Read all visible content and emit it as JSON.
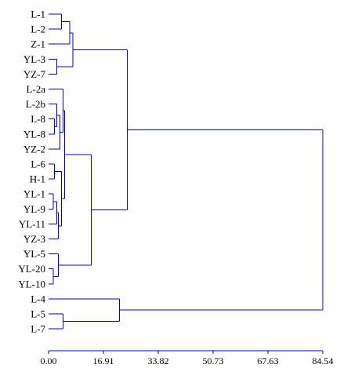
{
  "chart_data": {
    "type": "dendrogram",
    "orientation": "horizontal",
    "leaves": [
      "L-1",
      "L-2",
      "Z-1",
      "YL-3",
      "YZ-7",
      "L-2a",
      "L-2b",
      "L-8",
      "YL-8",
      "YZ-2",
      "L-6",
      "H-1",
      "YL-1",
      "YL-9",
      "YL-11",
      "YZ-3",
      "YL-5",
      "YL-20",
      "YL-10",
      "L-4",
      "L-5",
      "L-7"
    ],
    "x_ticks": [
      "0.00",
      "16.91",
      "33.82",
      "50.73",
      "67.63",
      "84.54"
    ],
    "xlim": [
      0,
      84.54
    ],
    "merges": [
      {
        "a": "L-1",
        "b": "L-2",
        "height": 4.0
      },
      {
        "a": "L-1+L-2",
        "b": "Z-1",
        "height": 6.5
      },
      {
        "a": "YL-3",
        "b": "YZ-7",
        "height": 2.5
      },
      {
        "a": "L-1+L-2+Z-1",
        "b": "YL-3+YZ-7",
        "height": 7.5
      },
      {
        "a": "L-8",
        "b": "YL-8",
        "height": 1.8
      },
      {
        "a": "L-2b",
        "b": "L-8+YL-8",
        "height": 2.5
      },
      {
        "a": "L-2b+L-8+YL-8",
        "b": "YZ-2",
        "height": 3.5
      },
      {
        "a": "L-2a",
        "b": "L-2b+L-8+YL-8+YZ-2",
        "height": 4.5
      },
      {
        "a": "L-6",
        "b": "H-1",
        "height": 1.8
      },
      {
        "a": "YL-1",
        "b": "YL-9",
        "height": 1.5
      },
      {
        "a": "YL-1+YL-9",
        "b": "YL-11",
        "height": 2.5
      },
      {
        "a": "YL-1+YL-9+YL-11",
        "b": "YZ-3",
        "height": 3.0
      },
      {
        "a": "L-6+H-1",
        "b": "YL-1+YL-9+YL-11+YZ-3",
        "height": 4.0
      },
      {
        "a": "L-2a…YZ-2",
        "b": "L-6…YZ-3",
        "height": 5.0
      },
      {
        "a": "YL-20",
        "b": "YL-10",
        "height": 1.5
      },
      {
        "a": "YL-5",
        "b": "YL-20+YL-10",
        "height": 3.0
      },
      {
        "a": "L-2a…YZ-3",
        "b": "YL-5+YL-20+YL-10",
        "height": 13.2
      },
      {
        "a": "L-1…YZ-7",
        "b": "L-2a…YL-10",
        "height": 24.3
      },
      {
        "a": "L-5",
        "b": "L-7",
        "height": 4.5
      },
      {
        "a": "L-4",
        "b": "L-5+L-7",
        "height": 21.8
      },
      {
        "a": "L-1…YL-10",
        "b": "L-4+L-5+L-7",
        "height": 84.5
      }
    ],
    "line_color": "#0000cc"
  }
}
